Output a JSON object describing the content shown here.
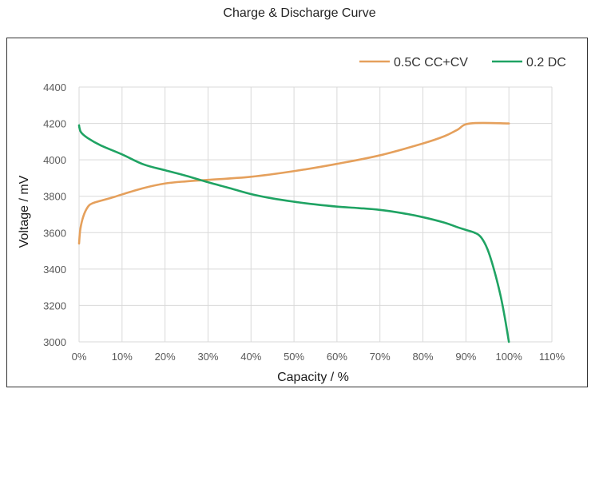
{
  "page": {
    "title": "Charge & Discharge Curve"
  },
  "chart_data": {
    "type": "line",
    "title": "Charge & Discharge Curve",
    "xlabel": "Capacity / %",
    "ylabel": "Voltage / mV",
    "xlim": [
      0,
      110
    ],
    "ylim": [
      3000,
      4400
    ],
    "x_ticks": [
      0,
      10,
      20,
      30,
      40,
      50,
      60,
      70,
      80,
      90,
      100,
      110
    ],
    "x_tick_labels": [
      "0%",
      "10%",
      "20%",
      "30%",
      "40%",
      "50%",
      "60%",
      "70%",
      "80%",
      "90%",
      "100%",
      "110%"
    ],
    "y_ticks": [
      3000,
      3200,
      3400,
      3600,
      3800,
      4000,
      4200,
      4400
    ],
    "y_tick_labels": [
      "3000",
      "3200",
      "3400",
      "3600",
      "3800",
      "4000",
      "4200",
      "4400"
    ],
    "grid": true,
    "legend_position": "top-right",
    "series": [
      {
        "name": "0.5C CC+CV",
        "color": "#E5A05C",
        "x": [
          0,
          0.3,
          1,
          2,
          3,
          5,
          8,
          10,
          15,
          20,
          25,
          30,
          40,
          50,
          60,
          70,
          80,
          85,
          88,
          91,
          100
        ],
        "y": [
          3540,
          3620,
          3690,
          3740,
          3760,
          3775,
          3795,
          3810,
          3845,
          3870,
          3882,
          3890,
          3907,
          3938,
          3978,
          4025,
          4090,
          4130,
          4165,
          4200,
          4200
        ]
      },
      {
        "name": "0.2 DC",
        "color": "#1FA363",
        "x": [
          0,
          0.1,
          0.5,
          2,
          5,
          10,
          15,
          20,
          25,
          30,
          35,
          40,
          45,
          50,
          55,
          60,
          65,
          70,
          75,
          80,
          85,
          88,
          90,
          92,
          93.5,
          95,
          96.5,
          98,
          99,
          100
        ],
        "y": [
          4190,
          4175,
          4150,
          4120,
          4080,
          4030,
          3975,
          3943,
          3912,
          3877,
          3845,
          3812,
          3788,
          3770,
          3755,
          3743,
          3735,
          3725,
          3708,
          3685,
          3655,
          3630,
          3615,
          3600,
          3575,
          3510,
          3400,
          3260,
          3140,
          3000
        ]
      }
    ]
  }
}
